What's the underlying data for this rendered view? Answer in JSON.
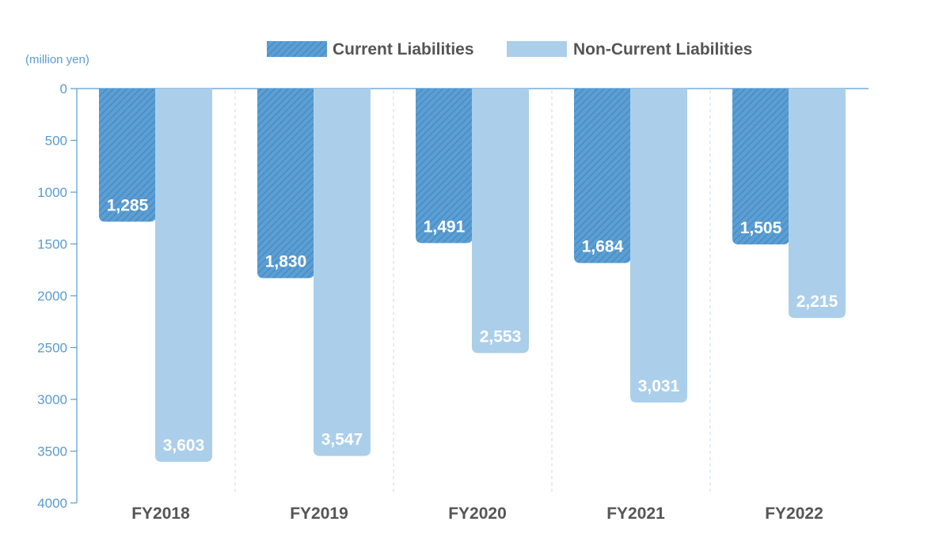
{
  "colors": {
    "current": "#5b9fd4",
    "current_stripe": "#4a8cc2",
    "non_current": "#abcfea",
    "axis": "#5a9bd0",
    "separator": "#c5dcec"
  },
  "chart_data": {
    "type": "bar",
    "orientation": "inverted",
    "unit_label": "(million yen)",
    "categories": [
      "FY2018",
      "FY2019",
      "FY2020",
      "FY2021",
      "FY2022"
    ],
    "series": [
      {
        "name": "Current Liabilities",
        "values": [
          1285,
          1830,
          1491,
          1684,
          1505
        ],
        "labels": [
          "1,285",
          "1,830",
          "1,491",
          "1,684",
          "1,505"
        ]
      },
      {
        "name": "Non-Current Liabilities",
        "values": [
          3603,
          3547,
          2553,
          3031,
          2215
        ],
        "labels": [
          "3,603",
          "3,547",
          "2,553",
          "3,031",
          "2,215"
        ]
      }
    ],
    "ylim": [
      0,
      4000
    ],
    "yticks": [
      "0",
      "500",
      "1000",
      "1500",
      "2000",
      "2500",
      "3000",
      "3500",
      "4000"
    ],
    "legend_position": "top-center",
    "grid": false
  }
}
